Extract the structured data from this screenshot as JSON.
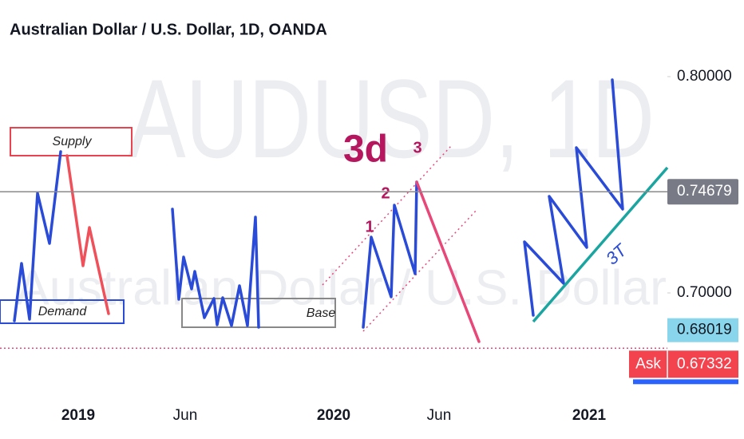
{
  "header": {
    "title": "Australian Dollar / U.S. Dollar, 1D, OANDA"
  },
  "watermark": {
    "symbol": "AUDUSD, 1D",
    "name": "Australian Dollar / U.S. Dollar"
  },
  "chart_data": {
    "type": "line",
    "ylim": [
      0.65461,
      0.83542
    ],
    "yticks": [
      {
        "value": 0.7,
        "label": "0.70000"
      },
      {
        "value": 0.8,
        "label": "0.80000"
      }
    ],
    "categories": [
      "2019",
      "Jun",
      "2020",
      "Jun",
      "2021"
    ],
    "last_price": {
      "value": 0.74679,
      "label": "0.74679"
    },
    "level": {
      "value": 0.68019,
      "label": "0.68019"
    },
    "ask": {
      "name": "Ask",
      "value": 0.67332,
      "label": "0.67332"
    },
    "annotations": {
      "supply": "Supply",
      "demand": "Demand",
      "base": "Base",
      "pattern": "3d",
      "wave1": "1",
      "wave2": "2",
      "wave3": "3",
      "trend": "3T"
    }
  }
}
